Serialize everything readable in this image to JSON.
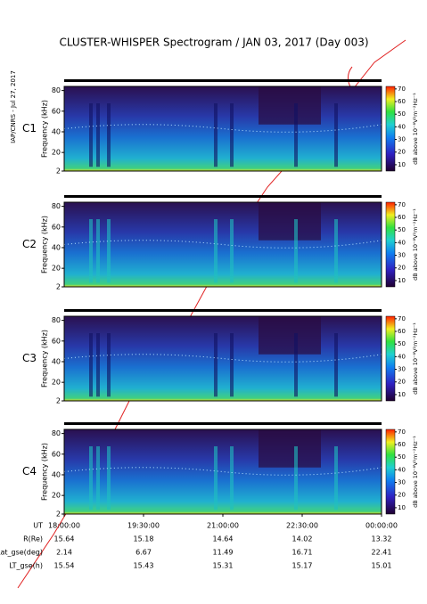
{
  "chart_data": {
    "type": "spectrogram",
    "title": "CLUSTER-WHISPER Spectrogram / JAN 03, 2017 (Day 003)",
    "side_note": "IAP/CNRS - Jul 27, 2017",
    "ylabel": "Frequency (kHz)",
    "ylim": [
      2,
      84
    ],
    "yticks": [
      2,
      20,
      40,
      60,
      80
    ],
    "panels": [
      {
        "name": "C1",
        "color": "#000000"
      },
      {
        "name": "C2",
        "color": "#000000"
      },
      {
        "name": "C3",
        "color": "#22bb22"
      },
      {
        "name": "C4",
        "color": "#000000"
      }
    ],
    "colorbar": {
      "label": "dB above 10⁻⁸V²m⁻²Hz⁻¹",
      "lim": [
        5,
        72
      ],
      "ticks": [
        10,
        20,
        30,
        40,
        50,
        60,
        70
      ]
    },
    "categories": [
      "18:00:00",
      "19:30:00",
      "21:00:00",
      "22:30:00",
      "00:00:00"
    ],
    "ephemeris": [
      {
        "label": "UT"
      },
      {
        "label": "R(Re)",
        "values": [
          15.64,
          15.18,
          14.64,
          14.02,
          13.32
        ]
      },
      {
        "label": "Lat_gse(deg)",
        "values": [
          2.14,
          6.67,
          11.49,
          16.71,
          22.41
        ]
      },
      {
        "label": "LT_gse(h)",
        "values": [
          15.54,
          15.43,
          15.31,
          15.17,
          15.01
        ]
      }
    ]
  }
}
